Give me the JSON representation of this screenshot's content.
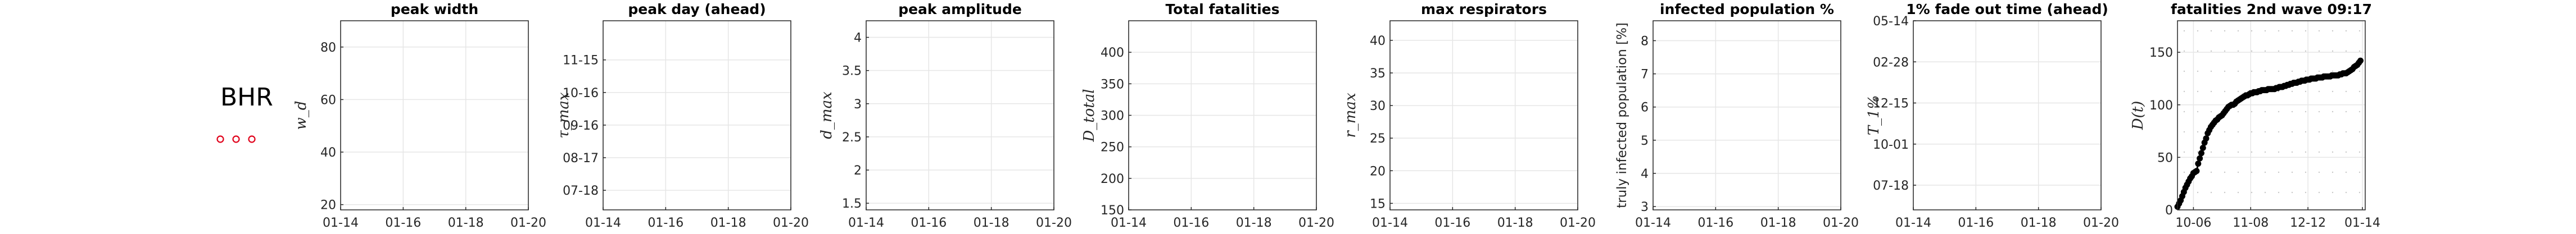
{
  "country": {
    "code": "BHR",
    "marker_color": "#e0001a"
  },
  "chart_data": [
    {
      "type": "scatter",
      "title": "peak width",
      "ylabel": "w_d",
      "x_ticks": [
        "01-14",
        "01-16",
        "01-18",
        "01-20"
      ],
      "y_ticks": [
        "20",
        "40",
        "60",
        "80"
      ],
      "ylim": [
        18,
        90
      ],
      "grid": true,
      "series": []
    },
    {
      "type": "scatter",
      "title": "peak day (ahead)",
      "ylabel": "τ_max",
      "x_ticks": [
        "01-14",
        "01-16",
        "01-18",
        "01-20"
      ],
      "y_ticks": [
        "07-18",
        "08-17",
        "09-16",
        "10-16",
        "11-15"
      ],
      "ylim": [
        0,
        5.8
      ],
      "grid": true,
      "series": []
    },
    {
      "type": "scatter",
      "title": "peak amplitude",
      "ylabel": "d_max",
      "x_ticks": [
        "01-14",
        "01-16",
        "01-18",
        "01-20"
      ],
      "y_ticks": [
        "1.5",
        "2",
        "2.5",
        "3",
        "3.5",
        "4"
      ],
      "ylim": [
        1.4,
        4.25
      ],
      "grid": true,
      "series": []
    },
    {
      "type": "scatter",
      "title": "Total fatalities",
      "ylabel": "D_total",
      "x_ticks": [
        "01-14",
        "01-16",
        "01-18",
        "01-20"
      ],
      "y_ticks": [
        "150",
        "200",
        "250",
        "300",
        "350",
        "400"
      ],
      "ylim": [
        150,
        450
      ],
      "grid": true,
      "series": []
    },
    {
      "type": "scatter",
      "title": "max respirators",
      "ylabel": "r_max",
      "x_ticks": [
        "01-14",
        "01-16",
        "01-18",
        "01-20"
      ],
      "y_ticks": [
        "15",
        "20",
        "25",
        "30",
        "35",
        "40"
      ],
      "ylim": [
        14,
        43
      ],
      "grid": true,
      "series": []
    },
    {
      "type": "scatter",
      "title": "infected population %",
      "ylabel": "truly infected population [%]",
      "x_ticks": [
        "01-14",
        "01-16",
        "01-18",
        "01-20"
      ],
      "y_ticks": [
        "3",
        "4",
        "5",
        "6",
        "7",
        "8"
      ],
      "ylim": [
        2.9,
        8.6
      ],
      "grid": true,
      "series": []
    },
    {
      "type": "scatter",
      "title": "1% fade out time (ahead)",
      "ylabel": "T_1%",
      "x_ticks": [
        "01-14",
        "01-16",
        "01-18",
        "01-20"
      ],
      "y_ticks": [
        "07-18",
        "10-01",
        "12-15",
        "02-28",
        "05-14"
      ],
      "ylim": [
        0,
        4.6
      ],
      "grid": true,
      "series": []
    },
    {
      "type": "line",
      "title": "fatalities 2nd wave 09:17",
      "ylabel": "D(t)",
      "x_ticks": [
        "10-06",
        "11-08",
        "12-12",
        "01-14"
      ],
      "y_ticks": [
        "0",
        "50",
        "100",
        "150"
      ],
      "xlim_days": [
        0,
        118
      ],
      "ylim": [
        0,
        180
      ],
      "grid": true,
      "series": [
        {
          "x": [
            0,
            1,
            2,
            3,
            4,
            5,
            6,
            7,
            8,
            9,
            10,
            11,
            12,
            13,
            14,
            15,
            16,
            17,
            18,
            19,
            20,
            21,
            22,
            23,
            24,
            25,
            26,
            27,
            28,
            29,
            30,
            31,
            32,
            33,
            34,
            35,
            36,
            37,
            38,
            39,
            40,
            41,
            42,
            43,
            44,
            45,
            46,
            47,
            48,
            49,
            50,
            51,
            52,
            53,
            54,
            55,
            56,
            57,
            58,
            59,
            60,
            61,
            62,
            63,
            64,
            65,
            66,
            67,
            68,
            69,
            70,
            71,
            72,
            73,
            74,
            75,
            76,
            77,
            78,
            79,
            80,
            81,
            82,
            83,
            84,
            85,
            86,
            87,
            88,
            89,
            90,
            91,
            92,
            93,
            94,
            95,
            96,
            97,
            98,
            99,
            100,
            101,
            102,
            103,
            104,
            105,
            106,
            107,
            108,
            109,
            110,
            111,
            112,
            113,
            114,
            115
          ],
          "y": [
            3,
            6,
            9,
            13,
            17,
            21,
            24,
            27,
            30,
            32,
            35,
            36,
            37,
            44,
            49,
            54,
            59,
            64,
            68,
            73,
            76,
            79,
            81,
            83,
            85,
            86,
            88,
            89,
            90,
            92,
            94,
            96,
            98,
            99,
            100,
            100,
            101,
            103,
            104,
            105,
            106,
            107,
            108,
            109,
            109,
            110,
            111,
            111,
            112,
            112,
            112,
            113,
            113,
            114,
            114,
            114,
            114,
            115,
            115,
            115,
            115,
            115,
            116,
            116,
            117,
            117,
            117,
            118,
            118,
            119,
            119,
            120,
            120,
            121,
            121,
            121,
            122,
            122,
            123,
            123,
            123,
            124,
            124,
            124,
            125,
            125,
            125,
            125,
            126,
            126,
            126,
            126,
            127,
            127,
            127,
            127,
            127,
            128,
            128,
            128,
            128,
            128,
            129,
            129,
            130,
            130,
            130,
            131,
            132,
            133,
            134,
            136,
            137,
            138,
            140,
            142
          ]
        }
      ]
    }
  ]
}
